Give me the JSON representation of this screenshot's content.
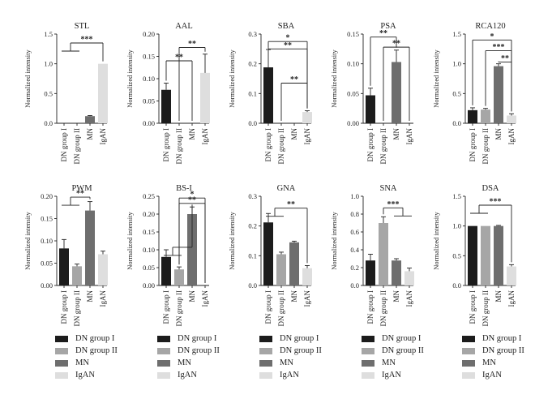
{
  "colors": {
    "DN group I": "#1c1c1c",
    "DN group II": "#a6a6a6",
    "MN": "#6e6e6e",
    "IgAN": "#dedede"
  },
  "legend": {
    "items": [
      "DN group I",
      "DN group II",
      "MN",
      "IgAN"
    ]
  },
  "chart_data": [
    {
      "type": "bar",
      "title": "STL",
      "ylabel": "Normalized intensity",
      "ylim": [
        0,
        1.5
      ],
      "yticks": [
        "0.0",
        "0.5",
        "1.0",
        "1.5"
      ],
      "categories": [
        "DN group I",
        "DN group II",
        "MN",
        "IgAN"
      ],
      "values": [
        0,
        0,
        0.12,
        1.0
      ],
      "errors": [
        0,
        0,
        0.01,
        0
      ],
      "significance": [
        {
          "label": "***",
          "from": [
            0,
            1
          ],
          "to": 3,
          "y": 1.35
        }
      ]
    },
    {
      "type": "bar",
      "title": "AAL",
      "ylabel": "Normalized intensity",
      "ylim": [
        0,
        0.2
      ],
      "yticks": [
        "0.00",
        "0.05",
        "0.10",
        "0.15",
        "0.20"
      ],
      "categories": [
        "DN group I",
        "DN group II",
        "MN",
        "IgAN"
      ],
      "values": [
        0.075,
        0,
        0,
        0.113
      ],
      "errors": [
        0.015,
        0,
        0,
        0.042
      ],
      "significance": [
        {
          "label": "**",
          "from": [
            0
          ],
          "to": 2,
          "y": 0.14
        },
        {
          "label": "**",
          "from": [
            1
          ],
          "to": 3,
          "y": 0.17
        }
      ]
    },
    {
      "type": "bar",
      "title": "SBA",
      "ylabel": "Normalized intensity",
      "ylim": [
        0,
        0.3
      ],
      "yticks": [
        "0.0",
        "0.1",
        "0.2",
        "0.3"
      ],
      "categories": [
        "DN group I",
        "DN group II",
        "MN",
        "IgAN"
      ],
      "values": [
        0.188,
        0,
        0,
        0.038
      ],
      "errors": [
        0.06,
        0,
        0,
        0.004
      ],
      "significance": [
        {
          "label": "*",
          "from": [
            0
          ],
          "to": 3,
          "y": 0.275
        },
        {
          "label": "**",
          "from": [
            0
          ],
          "to": 3,
          "y": 0.25
        },
        {
          "label": "**",
          "from": [
            1
          ],
          "to": 3,
          "y": 0.135
        }
      ]
    },
    {
      "type": "bar",
      "title": "PSA",
      "ylabel": "Normalized intensity",
      "ylim": [
        0,
        0.15
      ],
      "yticks": [
        "0.00",
        "0.05",
        "0.10",
        "0.15"
      ],
      "categories": [
        "DN group I",
        "DN group II",
        "MN",
        "IgAN"
      ],
      "values": [
        0.047,
        0,
        0.103,
        0
      ],
      "errors": [
        0.012,
        0,
        0.02,
        0
      ],
      "significance": [
        {
          "label": "**",
          "from": [
            0
          ],
          "to": 2,
          "y": 0.145
        },
        {
          "label": "**",
          "from": [
            1
          ],
          "to": 3,
          "y": 0.128
        }
      ]
    },
    {
      "type": "bar",
      "title": "RCA120",
      "ylabel": "Normalized intensity",
      "ylim": [
        0,
        1.5
      ],
      "yticks": [
        "0.0",
        "0.5",
        "1.0",
        "1.5"
      ],
      "categories": [
        "DN group I",
        "DN group II",
        "MN",
        "IgAN"
      ],
      "values": [
        0.22,
        0.23,
        0.96,
        0.13
      ],
      "errors": [
        0.04,
        0.02,
        0.04,
        0.03
      ],
      "significance": [
        {
          "label": "*",
          "from": [
            0
          ],
          "to": 3,
          "y": 1.4
        },
        {
          "label": "***",
          "from": [
            1
          ],
          "to": 3,
          "y": 1.22
        },
        {
          "label": "**",
          "from": [
            2
          ],
          "to": 3,
          "y": 1.03
        }
      ]
    },
    {
      "type": "bar",
      "title": "PWM",
      "ylabel": "Normalized intensity",
      "ylim": [
        0,
        0.2
      ],
      "yticks": [
        "0.00",
        "0.05",
        "0.10",
        "0.15",
        "0.20"
      ],
      "categories": [
        "DN group I",
        "DN group II",
        "MN",
        "IgAN"
      ],
      "values": [
        0.083,
        0.043,
        0.168,
        0.07
      ],
      "errors": [
        0.02,
        0.005,
        0.02,
        0.007
      ],
      "significance": [
        {
          "label": "**",
          "from": [
            0,
            1
          ],
          "to": 2,
          "y": 0.198
        }
      ]
    },
    {
      "type": "bar",
      "title": "BS-I",
      "ylabel": "Normalized intensity",
      "ylim": [
        0,
        0.25
      ],
      "yticks": [
        "0.00",
        "0.05",
        "0.10",
        "0.15",
        "0.20",
        "0.25"
      ],
      "categories": [
        "DN group I",
        "DN group II",
        "MN",
        "IgAN"
      ],
      "values": [
        0.08,
        0.045,
        0.2,
        0
      ],
      "errors": [
        0.02,
        0.007,
        0.02,
        0
      ],
      "significance": [
        {
          "label": "*",
          "from": [
            1
          ],
          "to": 3,
          "y": 0.245
        },
        {
          "label": "**",
          "from": [
            1
          ],
          "to": 3,
          "y": 0.23
        },
        {
          "label": "",
          "from": [
            0,
            1
          ],
          "to": 2,
          "y": 0.107
        }
      ]
    },
    {
      "type": "bar",
      "title": "GNA",
      "ylabel": "Normalized intensity",
      "ylim": [
        0,
        0.3
      ],
      "yticks": [
        "0.0",
        "0.1",
        "0.2",
        "0.3"
      ],
      "categories": [
        "DN group I",
        "DN group II",
        "MN",
        "IgAN"
      ],
      "values": [
        0.212,
        0.105,
        0.145,
        0.058
      ],
      "errors": [
        0.03,
        0.007,
        0.004,
        0.009
      ],
      "significance": [
        {
          "label": "**",
          "from": [
            0,
            1
          ],
          "to": 3,
          "y": 0.26
        }
      ]
    },
    {
      "type": "bar",
      "title": "SNA",
      "ylabel": "Normalized intensity",
      "ylim": [
        0,
        1.0
      ],
      "yticks": [
        "0.0",
        "0.2",
        "0.4",
        "0.6",
        "0.8",
        "1.0"
      ],
      "categories": [
        "DN group I",
        "DN group II",
        "MN",
        "IgAN"
      ],
      "values": [
        0.28,
        0.7,
        0.28,
        0.16
      ],
      "errors": [
        0.07,
        0.07,
        0.02,
        0.035
      ],
      "significance": [
        {
          "label": "***",
          "from": [
            1
          ],
          "to": [
            2,
            3
          ],
          "y": 0.87
        }
      ]
    },
    {
      "type": "bar",
      "title": "DSA",
      "ylabel": "Normalized intensity",
      "ylim": [
        0,
        1.5
      ],
      "yticks": [
        "0.0",
        "0.5",
        "1.0",
        "1.5"
      ],
      "categories": [
        "DN group I",
        "DN group II",
        "MN",
        "IgAN"
      ],
      "values": [
        1.0,
        1.0,
        1.0,
        0.32
      ],
      "errors": [
        0,
        0,
        0.01,
        0.03
      ],
      "significance": [
        {
          "label": "***",
          "from": [
            0,
            1
          ],
          "to": 3,
          "y": 1.35
        }
      ]
    }
  ]
}
